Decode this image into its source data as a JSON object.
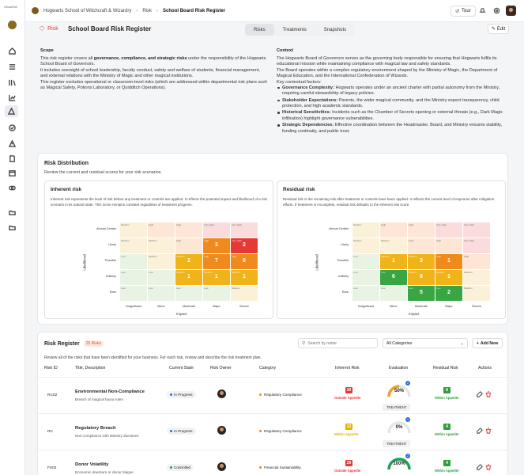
{
  "app": {
    "logo_text": "GhostOne"
  },
  "breadcrumb": [
    "Hogwarts School of Witchcraft & Wizardry",
    "Risk",
    "School Board Risk Register"
  ],
  "header": {
    "tour_label": "Tour",
    "edit_label": "Edit",
    "risk_tag": "Risk",
    "title": "School Board Risk Register",
    "tabs": [
      {
        "label": "Risks",
        "active": true
      },
      {
        "label": "Treatments",
        "active": false
      },
      {
        "label": "Snapshots",
        "active": false
      }
    ]
  },
  "scope": {
    "heading": "Scope",
    "l1_a": "This risk register covers all ",
    "l1_b": "governance, compliance, and strategic risks",
    "l1_c": " under the responsibility of the Hogwarts School Board of Governors.",
    "l2": "It includes oversight of school leadership, faculty conduct, safety and welfare of students, financial management, and external relations with the Ministry of Magic and other magical institutions.",
    "l3": "This register excludes operational or classroom-level risks (which are addressed within departmental risk plans such as Magical Safety, Potions Laboratory, or Quidditch Operations)."
  },
  "context": {
    "heading": "Context",
    "intro": "The Hogwarts Board of Governors serves as the governing body responsible for ensuring that Hogwarts fulfils its educational mission while maintaining compliance with magical law and safety standards.",
    "intro2": "The Board operates within a complex regulatory environment shaped by the Ministry of Magic, the Department of Magical Education, and the International Confederation of Wizards.",
    "factors_label": "Key contextual factors:",
    "factors": [
      {
        "title": "Governance Complexity:",
        "text": " Hogwarts operates under an ancient charter with partial autonomy from the Ministry, requiring careful stewardship of legacy policies."
      },
      {
        "title": "Stakeholder Expectations:",
        "text": " Parents, the wider magical community, and the Ministry expect transparency, child protection, and high academic standards."
      },
      {
        "title": "Historical Sensitivities:",
        "text": " Incidents such as the Chamber of Secrets opening or external threats (e.g., Dark Magic infiltration) highlight governance vulnerabilities."
      },
      {
        "title": "Strategic Dependencies:",
        "text": " Effective coordination between the Headmaster, Board, and Ministry ensures stability, funding continuity, and public trust."
      }
    ]
  },
  "distribution": {
    "title": "Risk Distribution",
    "subtitle": "Review the current and residual scores for your risk scenarios.",
    "y_axis": "Likelihood",
    "x_axis": "Impact",
    "rows": [
      "Almost Certain",
      "Likely",
      "Possible",
      "Unlikely",
      "Rare"
    ],
    "cols": [
      "Insignificant",
      "Minor",
      "Moderate",
      "Major",
      "Severe"
    ],
    "cell_labels": [
      [
        "Medium",
        "High",
        "High",
        "Very High",
        "Very High"
      ],
      [
        "Medium",
        "Medium",
        "High",
        "High",
        "Very High"
      ],
      [
        "Low",
        "Medium",
        "Medium",
        "High",
        "High"
      ],
      [
        "Low",
        "Low",
        "Medium",
        "Medium",
        "Medium"
      ],
      [
        "Low",
        "Low",
        "Low",
        "Low",
        "Medium"
      ]
    ],
    "inherent": {
      "title": "Inherent risk",
      "desc": "Inherent risk represents the level of risk before any treatment or controls are applied. It reflects the potential impact and likelihood of a risk scenario in its natural state. This score remains constant regardless of treatment progress.",
      "counts": [
        [
          0,
          0,
          0,
          0,
          0
        ],
        [
          0,
          0,
          0,
          3,
          2
        ],
        [
          0,
          0,
          2,
          7,
          6
        ],
        [
          0,
          0,
          1,
          1,
          1
        ],
        [
          0,
          0,
          0,
          0,
          0
        ]
      ]
    },
    "residual": {
      "title": "Residual risk",
      "desc": "Residual risk is the remaining risk after treatment or controls have been applied. It reflects the current level of exposure after mitigation efforts. If treatment is incomplete, residual risk defaults to the inherent risk score.",
      "counts": [
        [
          0,
          0,
          0,
          0,
          0
        ],
        [
          0,
          0,
          0,
          0,
          0
        ],
        [
          0,
          1,
          3,
          1,
          0
        ],
        [
          0,
          6,
          8,
          1,
          0
        ],
        [
          0,
          0,
          5,
          2,
          0
        ]
      ]
    }
  },
  "register": {
    "title": "Risk Register",
    "count": "25 Risks",
    "subtitle": "Review all of the risks that have been identified for your business. For each risk, review and describe the risk treatment plan.",
    "search_placeholder": "Search by name",
    "category_filter": "All Categories",
    "add_label": "Add New",
    "columns": [
      "Risk ID",
      "Title, Description",
      "Current State",
      "Risk Owner",
      "Category",
      "Inherent Risk",
      "Evaluation",
      "Residual Risk",
      "Actions"
    ],
    "rows": [
      {
        "id": "RC02",
        "title": "Environmental Non-Compliance",
        "desc": "Breach of magical fauna rules",
        "state": "In Progress",
        "category": "Regulatory Compliance",
        "inherent": "20",
        "inherent_label": "Outside Appetite",
        "inherent_color": "#e53935",
        "eval_pct": 50,
        "eval": "50%",
        "eval_color": "#f0a020",
        "eval_badge": "2",
        "eval_treat": "TREATMENT",
        "residual": "8",
        "residual_label": "Within Appetite",
        "residual_color": "#2e9e3e"
      },
      {
        "id": "RC",
        "title": "Regulatory Breach",
        "desc": "Non-compliance with Ministry directives",
        "state": "In Progress",
        "category": "Regulatory Compliance",
        "inherent": "12",
        "inherent_label": "Within Appetite",
        "inherent_color": "#e0b400",
        "eval_pct": 0,
        "eval": "0%",
        "eval_color": "#cccccc",
        "eval_badge": "1",
        "eval_treat": "TREATMENT",
        "residual": "4",
        "residual_label": "Within Appetite",
        "residual_color": "#2e9e3e"
      },
      {
        "id": "FS02",
        "title": "Donor Volatility",
        "desc": "Economic downturn or donor fatigue",
        "state": "Controlled",
        "category": "Financial Sustainability",
        "inherent": "20",
        "inherent_label": "Outside Appetite",
        "inherent_color": "#e53935",
        "eval_pct": 100,
        "eval": "100%",
        "eval_color": "#1f9e5a",
        "eval_badge": "2",
        "eval_treat": "TREATMENT",
        "residual": "4",
        "residual_label": "Within Appetite",
        "residual_color": "#2e9e3e"
      }
    ]
  }
}
